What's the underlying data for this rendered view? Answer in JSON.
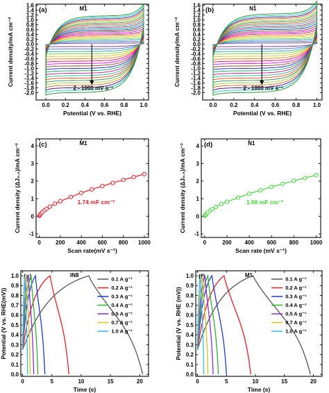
{
  "chart_data": [
    {
      "id": "a",
      "type": "line",
      "subtype": "cyclic-voltammetry",
      "panel_label": "(a)",
      "name": "M1",
      "xlabel": "Potential (V vs. RHE)",
      "ylabel": "Current density/mA cm⁻²",
      "xlim": [
        -0.1,
        1.05
      ],
      "ylim": [
        -2.3,
        1.65
      ],
      "xticks": [
        "0.0",
        "0.2",
        "0.4",
        "0.6",
        "0.8",
        "1.0"
      ],
      "yticks": [
        "-2.0",
        "-1.8",
        "-1.6",
        "-1.4",
        "-1.2",
        "-1.0",
        "-0.8",
        "-0.6",
        "-0.4",
        "-0.2",
        "0.0",
        "0.2",
        "0.4",
        "0.6",
        "0.8",
        "1.0",
        "1.2",
        "1.4",
        "1.6"
      ],
      "annotation": "2 - 1000 mV s⁻¹",
      "x_range": [
        0.0,
        1.0
      ],
      "upper_max": [
        0.05,
        0.12,
        0.19,
        0.26,
        0.33,
        0.4,
        0.47,
        0.54,
        0.61,
        0.68,
        0.75,
        0.82,
        0.89,
        0.96,
        1.03,
        1.1,
        1.17,
        1.24,
        1.31,
        1.38
      ],
      "lower_min": [
        -0.1,
        -0.2,
        -0.3,
        -0.4,
        -0.5,
        -0.6,
        -0.7,
        -0.8,
        -0.9,
        -1.0,
        -1.1,
        -1.2,
        -1.3,
        -1.4,
        -1.5,
        -1.6,
        -1.7,
        -1.8,
        -1.9,
        -2.0
      ],
      "colors": [
        "#6a2c91",
        "#3f6ad8",
        "#1aa7b8",
        "#7fd321",
        "#d8c21c",
        "#ff7f0e",
        "#e0115f",
        "#ff00ff",
        "#8b4513",
        "#1f1fcf",
        "#00a86b",
        "#c71585",
        "#20b2aa",
        "#ff4500",
        "#2e8b57",
        "#9acd32",
        "#d2691e",
        "#4b0082",
        "#00ced1",
        "#228b22"
      ]
    },
    {
      "id": "b",
      "type": "line",
      "subtype": "cyclic-voltammetry",
      "panel_label": "(b)",
      "name": "N1",
      "xlabel": "Potential (V vs. RHE)",
      "ylabel": "Current density/mA cm⁻²",
      "xlim": [
        -0.1,
        1.05
      ],
      "ylim": [
        -2.3,
        1.65
      ],
      "xticks": [
        "0.0",
        "0.2",
        "0.4",
        "0.6",
        "0.8",
        "1.0"
      ],
      "yticks": [
        "-2.0",
        "-1.8",
        "-1.6",
        "-1.4",
        "-1.2",
        "-1.0",
        "-0.8",
        "-0.6",
        "-0.4",
        "-0.2",
        "0.0",
        "0.2",
        "0.4",
        "0.6",
        "0.8",
        "1.0",
        "1.2",
        "1.4",
        "1.6"
      ],
      "annotation": "2 - 1000 mV s⁻¹",
      "x_range": [
        0.0,
        1.0
      ],
      "upper_max": [
        0.06,
        0.13,
        0.2,
        0.27,
        0.35,
        0.42,
        0.5,
        0.57,
        0.64,
        0.72,
        0.8,
        0.87,
        0.95,
        1.02,
        1.1,
        1.17,
        1.25,
        1.32,
        1.4,
        1.48
      ],
      "lower_min": [
        -0.1,
        -0.2,
        -0.3,
        -0.4,
        -0.5,
        -0.6,
        -0.7,
        -0.8,
        -0.9,
        -1.0,
        -1.1,
        -1.2,
        -1.3,
        -1.4,
        -1.5,
        -1.6,
        -1.7,
        -1.8,
        -1.9,
        -2.0
      ],
      "colors": [
        "#6a2c91",
        "#3f6ad8",
        "#1aa7b8",
        "#7fd321",
        "#d8c21c",
        "#ff7f0e",
        "#e0115f",
        "#ff00ff",
        "#8b4513",
        "#1f1fcf",
        "#00a86b",
        "#c71585",
        "#20b2aa",
        "#ff4500",
        "#2e8b57",
        "#9acd32",
        "#d2691e",
        "#4b0082",
        "#00ced1",
        "#228b22"
      ]
    },
    {
      "id": "c",
      "type": "scatter",
      "panel_label": "(c)",
      "name": "M1",
      "xlabel": "Scan rate(mV s⁻¹)",
      "ylabel": "Current density (ΔJ₀.₅)/mA cm⁻²",
      "xlim": [
        -30,
        1040
      ],
      "ylim": [
        -1.2,
        4.4
      ],
      "xticks": [
        0,
        200,
        400,
        600,
        800,
        1000
      ],
      "yticks": [
        -1,
        0,
        1,
        2,
        3,
        4
      ],
      "color": "#e0202a",
      "slope_label": "1.74 mF cm⁻²",
      "x": [
        2,
        5,
        10,
        20,
        30,
        50,
        70,
        100,
        150,
        200,
        300,
        400,
        500,
        600,
        700,
        800,
        900,
        1000
      ],
      "y": [
        0.03,
        0.06,
        0.12,
        0.18,
        0.24,
        0.34,
        0.43,
        0.55,
        0.72,
        0.86,
        1.1,
        1.33,
        1.53,
        1.72,
        1.9,
        2.07,
        2.23,
        2.4
      ]
    },
    {
      "id": "d",
      "type": "scatter",
      "panel_label": "(d)",
      "name": "N1",
      "xlabel": "Scan rate (mV s⁻¹)",
      "ylabel": "Current density (ΔJ₀.₅)/mA cm⁻²",
      "xlim": [
        -30,
        1040
      ],
      "ylim": [
        -1.2,
        4.4
      ],
      "xticks": [
        0,
        200,
        400,
        600,
        800,
        1000
      ],
      "yticks": [
        -1,
        0,
        1,
        2,
        3,
        4
      ],
      "color": "#44d63a",
      "slope_label": "1.68 mF cm⁻²",
      "x": [
        2,
        5,
        10,
        20,
        30,
        50,
        70,
        100,
        150,
        200,
        300,
        400,
        500,
        600,
        700,
        800,
        900,
        1000
      ],
      "y": [
        0.03,
        0.06,
        0.11,
        0.17,
        0.23,
        0.33,
        0.41,
        0.53,
        0.7,
        0.83,
        1.06,
        1.28,
        1.48,
        1.67,
        1.85,
        2.02,
        2.18,
        2.34
      ]
    },
    {
      "id": "e",
      "type": "line",
      "subtype": "galvanostatic-charge-discharge",
      "panel_label": "(e)",
      "name": "IN8",
      "xlabel": "Time (s)",
      "ylabel": "Potential (V vs. RHE(mV))",
      "xlim": [
        -0.3,
        21.5
      ],
      "ylim": [
        -0.02,
        1.05
      ],
      "xticks": [
        0,
        5,
        10,
        15,
        20
      ],
      "yticks": [
        "0.0",
        "0.1",
        "0.2",
        "0.3",
        "0.4",
        "0.5",
        "0.6",
        "0.7",
        "0.8",
        "0.9",
        "1.0"
      ],
      "legend_position": "right",
      "series": [
        {
          "name": "0.1 A g⁻¹",
          "color": "#555555",
          "charge_end": 11.3,
          "discharge_end": 20.5
        },
        {
          "name": "0.2 A g⁻¹",
          "color": "#e0202a",
          "charge_end": 4.7,
          "discharge_end": 7.9
        },
        {
          "name": "0.3 A g⁻¹",
          "color": "#1f3ad0",
          "charge_end": 2.2,
          "discharge_end": 3.8
        },
        {
          "name": "0.4 A g⁻¹",
          "color": "#30b030",
          "charge_end": 1.45,
          "discharge_end": 2.6
        },
        {
          "name": "0.5 A g⁻¹",
          "color": "#8a2be2",
          "charge_end": 1.0,
          "discharge_end": 1.9
        },
        {
          "name": "0.7 A g⁻¹",
          "color": "#d8c21c",
          "charge_end": 0.65,
          "discharge_end": 1.3
        },
        {
          "name": "1.0 A g⁻¹",
          "color": "#38b6e8",
          "charge_end": 0.4,
          "discharge_end": 0.85
        }
      ]
    },
    {
      "id": "f",
      "type": "line",
      "subtype": "galvanostatic-charge-discharge",
      "panel_label": "(f)",
      "name": "M1",
      "xlabel": "Time (s)",
      "ylabel": "Potential (V vs. RHE (mV))",
      "xlim": [
        -0.3,
        21.5
      ],
      "ylim": [
        -0.02,
        1.05
      ],
      "xticks": [
        0,
        5,
        10,
        15,
        20
      ],
      "yticks": [
        "0.0",
        "0.1",
        "0.2",
        "0.3",
        "0.4",
        "0.5",
        "0.6",
        "0.7",
        "0.8",
        "0.9",
        "1.0"
      ],
      "legend_position": "right",
      "series": [
        {
          "name": "0.1 A g⁻¹",
          "color": "#555555",
          "charge_end": 9.6,
          "discharge_end": 19.5
        },
        {
          "name": "0.2 A g⁻¹",
          "color": "#e0202a",
          "charge_end": 4.6,
          "discharge_end": 9.2
        },
        {
          "name": "0.3 A g⁻¹",
          "color": "#1f3ad0",
          "charge_end": 2.5,
          "discharge_end": 5.0
        },
        {
          "name": "0.4 A g⁻¹",
          "color": "#30b030",
          "charge_end": 1.8,
          "discharge_end": 3.6
        },
        {
          "name": "0.5 A g⁻¹",
          "color": "#8a2be2",
          "charge_end": 1.3,
          "discharge_end": 2.7
        },
        {
          "name": "0.7 A g⁻¹",
          "color": "#d8c21c",
          "charge_end": 0.85,
          "discharge_end": 1.8
        },
        {
          "name": "1.0 A g⁻¹",
          "color": "#38b6e8",
          "charge_end": 0.5,
          "discharge_end": 1.1
        }
      ]
    }
  ]
}
